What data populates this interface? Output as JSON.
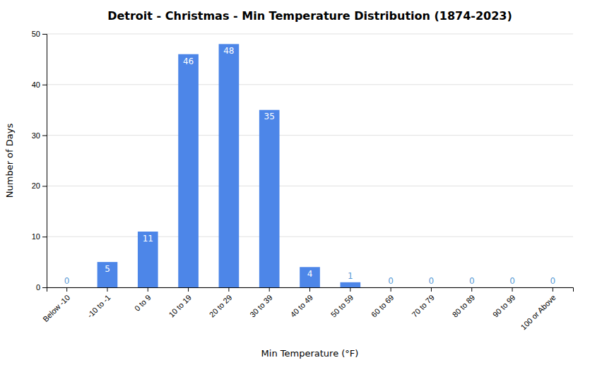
{
  "chart_data": {
    "type": "bar",
    "title": "Detroit - Christmas - Min Temperature Distribution (1874-2023)",
    "xlabel": "Min Temperature (°F)",
    "ylabel": "Number of Days",
    "categories": [
      "Below -10",
      "-10 to -1",
      "0 to 9",
      "10 to 19",
      "20 to 29",
      "30 to 39",
      "40 to 49",
      "50 to 59",
      "60 to 69",
      "70 to 79",
      "80 to 89",
      "90 to 99",
      "100 or Above"
    ],
    "values": [
      0,
      5,
      11,
      46,
      48,
      35,
      4,
      1,
      0,
      0,
      0,
      0,
      0
    ],
    "color": "#4d86e8",
    "ylim": [
      0,
      50
    ],
    "yticks": [
      0,
      10,
      20,
      30,
      40,
      50
    ],
    "grid": true,
    "data_labels": true
  }
}
